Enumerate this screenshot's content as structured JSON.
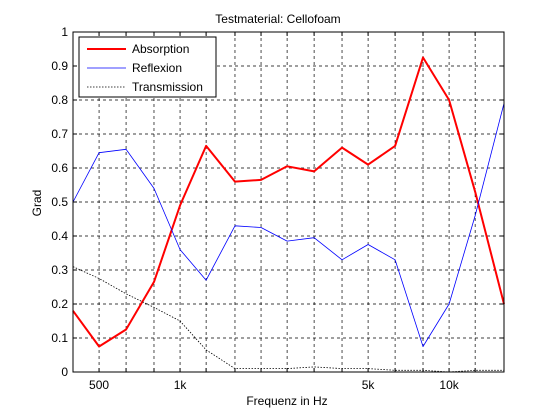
{
  "chart_data": {
    "type": "line",
    "title": "Testmaterial: Cellofoam",
    "xlabel": "Frequenz in Hz",
    "ylabel": "Grad",
    "x_scale": "log",
    "xlim": [
      400,
      16000
    ],
    "ylim": [
      0,
      1
    ],
    "grid": true,
    "legend_position": "top-left",
    "x_tick_labels": [
      {
        "value": 500,
        "label": "500"
      },
      {
        "value": 1000,
        "label": "1k"
      },
      {
        "value": 5000,
        "label": "5k"
      },
      {
        "value": 10000,
        "label": "10k"
      }
    ],
    "x_grid": [
      400,
      500,
      630,
      800,
      1000,
      1250,
      1600,
      2000,
      2500,
      3150,
      4000,
      5000,
      6300,
      8000,
      10000,
      12500,
      16000
    ],
    "y_ticks": [
      {
        "value": 0,
        "label": "0"
      },
      {
        "value": 0.1,
        "label": "0.1"
      },
      {
        "value": 0.2,
        "label": "0.2"
      },
      {
        "value": 0.3,
        "label": "0.3"
      },
      {
        "value": 0.4,
        "label": "0.4"
      },
      {
        "value": 0.5,
        "label": "0.5"
      },
      {
        "value": 0.6,
        "label": "0.6"
      },
      {
        "value": 0.7,
        "label": "0.7"
      },
      {
        "value": 0.8,
        "label": "0.8"
      },
      {
        "value": 0.9,
        "label": "0.9"
      },
      {
        "value": 1,
        "label": "1"
      }
    ],
    "x": [
      400,
      500,
      630,
      800,
      1000,
      1250,
      1600,
      2000,
      2500,
      3150,
      4000,
      5000,
      6300,
      8000,
      10000,
      12500,
      16000
    ],
    "series": [
      {
        "name": "Absorption",
        "color": "#ff0000",
        "style": "solid",
        "width": 2,
        "values": [
          0.18,
          0.075,
          0.125,
          0.265,
          0.49,
          0.665,
          0.56,
          0.565,
          0.605,
          0.59,
          0.66,
          0.61,
          0.665,
          0.925,
          0.8,
          0.53,
          0.2
        ]
      },
      {
        "name": "Reflexion",
        "color": "#0000ff",
        "style": "solid",
        "width": 0.8,
        "values": [
          0.5,
          0.645,
          0.655,
          0.54,
          0.36,
          0.27,
          0.43,
          0.425,
          0.385,
          0.395,
          0.33,
          0.375,
          0.33,
          0.075,
          0.2,
          0.46,
          0.79
        ]
      },
      {
        "name": "Transmission",
        "color": "#000000",
        "style": "dotted",
        "width": 0.8,
        "values": [
          0.31,
          0.275,
          0.23,
          0.19,
          0.15,
          0.065,
          0.01,
          0.01,
          0.01,
          0.015,
          0.01,
          0.01,
          0.005,
          0.005,
          0.0,
          0.005,
          0.005
        ]
      }
    ]
  }
}
